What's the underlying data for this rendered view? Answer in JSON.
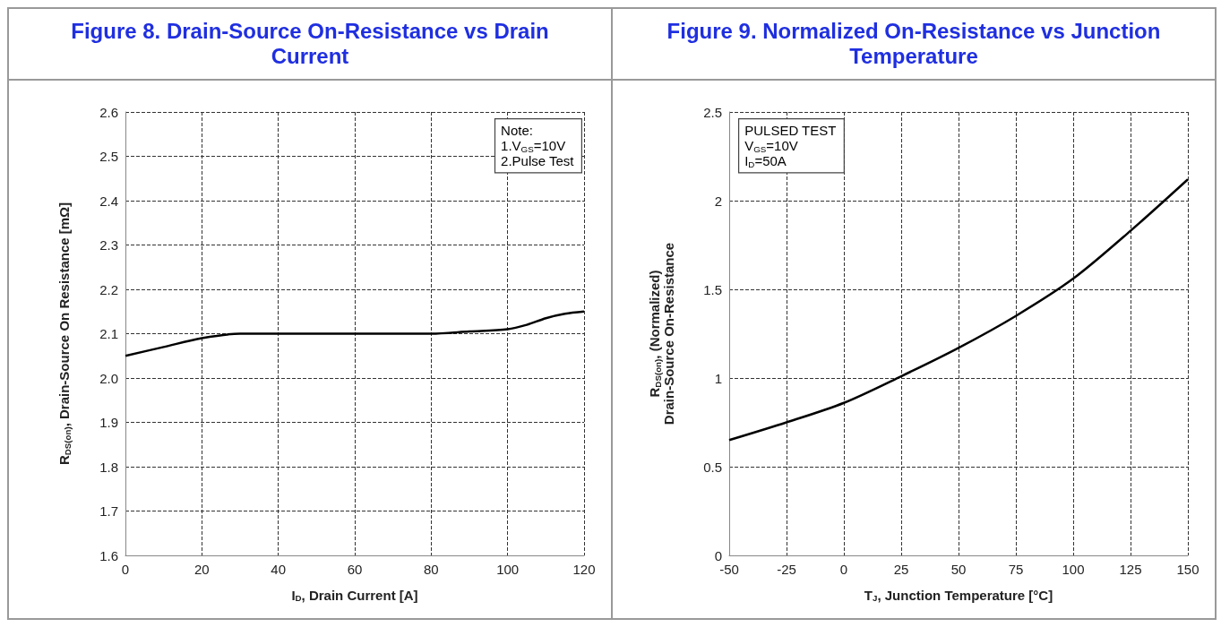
{
  "chart_data": [
    {
      "type": "line",
      "title": "Figure 8. Drain-Source On-Resistance vs Drain Current",
      "xlabel": "I$_{D}$, Drain Current [A]",
      "ylabel": "R$_{DS(on)}$, Drain-Source On Resistance [mΩ]",
      "annotations": [
        "Note:\n1.V$_{GS}$=10V\n2.Pulse Test"
      ],
      "x": [
        0,
        10,
        20,
        30,
        40,
        50,
        60,
        70,
        80,
        90,
        100,
        105,
        110,
        115,
        120
      ],
      "series": [
        {
          "color": "#000000",
          "values": [
            2.05,
            2.07,
            2.09,
            2.1,
            2.1,
            2.1,
            2.1,
            2.1,
            2.1,
            2.105,
            2.11,
            2.12,
            2.135,
            2.145,
            2.15
          ]
        }
      ],
      "xlim": [
        0,
        120
      ],
      "xticks": [
        0,
        20,
        40,
        60,
        80,
        100,
        120
      ],
      "ylim": [
        1.6,
        2.6
      ],
      "yticks": [
        1.6,
        1.7,
        1.8,
        1.9,
        {
          "value": 2,
          "label": "2.0"
        },
        2.1,
        2.2,
        2.3,
        2.4,
        2.5,
        2.6
      ],
      "grid": true,
      "marker": "none",
      "line_style": "solid"
    },
    {
      "type": "line",
      "title": "Figure 9. Normalized On-Resistance vs Junction Temperature",
      "xlabel": "T$_{J}$, Junction Temperature [°C]",
      "ylabel": "R$_{DS(on)}$, (Normalized)\nDrain-Source On-Resistance",
      "annotations": [
        "PULSED TEST\nV$_{GS}$=10V\nI$_{D}$=50A"
      ],
      "x": [
        -50,
        -25,
        0,
        25,
        50,
        75,
        100,
        125,
        150
      ],
      "series": [
        {
          "color": "#000000",
          "values": [
            0.65,
            0.75,
            0.86,
            1.01,
            1.17,
            1.35,
            1.56,
            1.83,
            2.12
          ]
        }
      ],
      "xlim": [
        -50,
        150
      ],
      "xticks": [
        -50,
        -25,
        0,
        25,
        50,
        75,
        100,
        125,
        150
      ],
      "ylim": [
        0,
        2.5
      ],
      "yticks": [
        0,
        0.5,
        1,
        1.5,
        2,
        2.5
      ],
      "grid": true,
      "marker": "none",
      "line_style": "solid"
    }
  ]
}
